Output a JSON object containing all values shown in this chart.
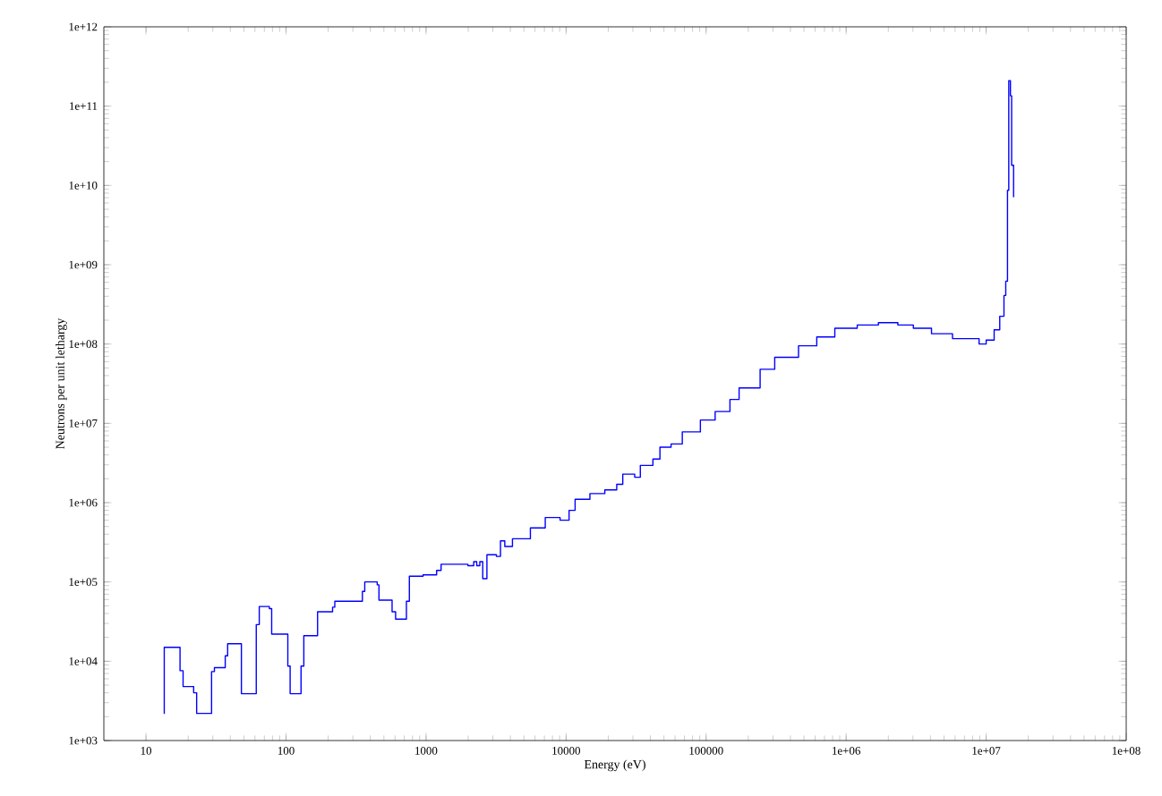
{
  "chart_data": {
    "type": "step",
    "xlabel": "Energy (eV)",
    "ylabel": "Neutrons per unit lethargy",
    "log": "xy",
    "grid": false,
    "xlim": [
      5,
      100000000
    ],
    "ylim": [
      1000,
      1000000000000
    ],
    "xticks": [
      10,
      100,
      1000,
      10000,
      100000,
      {
        "value": 1000000,
        "label": "1e+06"
      },
      {
        "value": 10000000,
        "label": "1e+07"
      },
      {
        "value": 100000000,
        "label": "1e+08"
      }
    ],
    "yticks": [
      {
        "value": 1000,
        "label": "1e+03"
      },
      {
        "value": 10000,
        "label": "1e+04"
      },
      {
        "value": 100000,
        "label": "1e+05"
      },
      {
        "value": 1000000,
        "label": "1e+06"
      },
      {
        "value": 10000000,
        "label": "1e+07"
      },
      {
        "value": 100000000,
        "label": "1e+08"
      },
      {
        "value": 1000000000,
        "label": "1e+09"
      },
      {
        "value": 10000000000,
        "label": "1e+10"
      },
      {
        "value": 100000000000,
        "label": "1e+11"
      },
      {
        "value": 1000000000000,
        "label": "1e+12"
      }
    ],
    "series": [
      {
        "color": "#0000ff",
        "x": [
          13.4,
          13.5,
          17.5,
          18.4,
          21.9,
          23,
          29.4,
          30.8,
          36.8,
          38.3,
          48,
          61.3,
          64.4,
          76,
          79,
          103,
          107,
          128,
          134,
          168,
          215,
          223,
          351,
          365,
          448,
          461,
          572,
          606,
          724,
          760,
          952,
          1190,
          1280,
          1990,
          2190,
          2300,
          2420,
          2540,
          2720,
          3180,
          3400,
          3650,
          4140,
          5560,
          7100,
          9060,
          10500,
          11600,
          14800,
          18900,
          23000,
          25400,
          30900,
          33900,
          41700,
          46800,
          56200,
          67600,
          91000,
          116000,
          148000,
          172000,
          243000,
          309000,
          457000,
          617000,
          830000,
          1200000,
          1700000,
          2340000,
          3020000,
          4070000,
          5750000,
          7670000,
          8900000,
          10000000,
          11400000,
          12500000,
          13400000,
          13800000,
          14200000,
          14500000,
          14900000,
          15200000,
          15700000
        ],
        "values": [
          2200,
          15000,
          7600,
          4800,
          4000,
          2200,
          7400,
          8300,
          11700,
          16600,
          3900,
          29000,
          49000,
          46000,
          22000,
          8700,
          3900,
          8700,
          21000,
          42000,
          48000,
          57000,
          76000,
          100000,
          92000,
          59000,
          42000,
          34000,
          57000,
          118000,
          123000,
          140000,
          167000,
          160000,
          180000,
          160000,
          180000,
          110000,
          220000,
          210000,
          330000,
          280000,
          350000,
          480000,
          650000,
          600000,
          800000,
          1100000,
          1300000,
          1450000,
          1700000,
          2290000,
          2090000,
          2950000,
          3550000,
          5000000,
          5500000,
          7800000,
          11000000,
          14100000,
          20000000,
          28000000,
          48000000,
          68000000,
          95000000,
          123000000,
          158000000,
          174000000,
          186000000,
          174000000,
          158000000,
          135000000,
          117000000,
          117000000,
          100000000,
          112000000,
          151000000,
          224000000,
          410000000,
          620000000,
          8700000000,
          210000000000,
          135000000000,
          18000000000,
          7100000000
        ]
      }
    ]
  }
}
